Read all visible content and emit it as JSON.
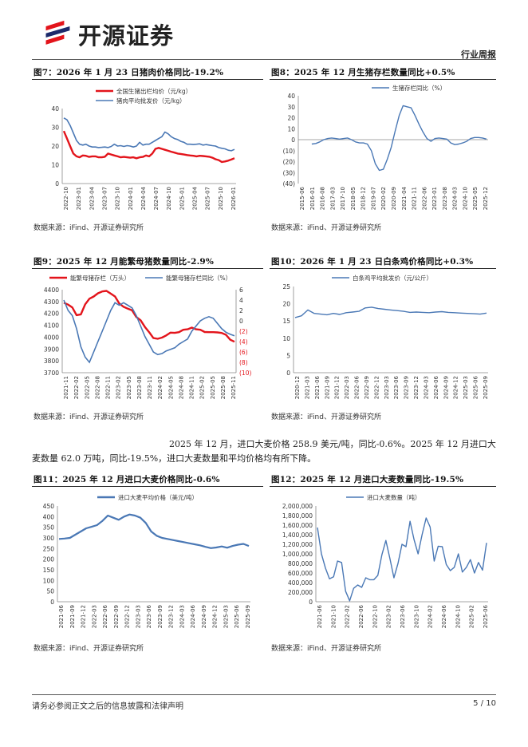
{
  "header": {
    "brand": "开源证券",
    "report_type": "行业周报"
  },
  "colors": {
    "red": "#e3141b",
    "blue": "#4a78b5",
    "accent": "#1a1a1a"
  },
  "figures": [
    {
      "title": "图7：2026 年 1 月 23 日猪肉价格同比-19.2%",
      "source": "数据来源：iFind、开源证券研究所",
      "chart_data": {
        "type": "line",
        "legend": [
          "全国生猪出栏均价（元/kg）",
          "猪肉平均批发价（元/kg）"
        ],
        "y_ticks": [
          "40",
          "30",
          "20",
          "10",
          "0"
        ],
        "ylim": [
          0,
          40
        ],
        "x_ticks": [
          "2022-10",
          "2023-01",
          "2023-04",
          "2023-07",
          "2023-10",
          "2024-01",
          "2024-04",
          "2024-07",
          "2024-10",
          "2025-01",
          "2025-04",
          "2025-07",
          "2025-10",
          "2026-01"
        ],
        "series": [
          {
            "name": "全国生猪出栏均价（元/kg）",
            "values": [
              28,
              24,
              20,
              16,
              14.5,
              14,
              15,
              14.8,
              14.2,
              14.5,
              14.5,
              14,
              14,
              14.3,
              16,
              15.5,
              15,
              14.5,
              14,
              14.2,
              14,
              13.8,
              14,
              13.5,
              14,
              14.2,
              15,
              14.5,
              16,
              18.5,
              19,
              18.5,
              18,
              17.5,
              17,
              16.5,
              16,
              15.8,
              15.5,
              15.2,
              15,
              14.8,
              14.5,
              14.8,
              14.7,
              14.5,
              14.3,
              13.8,
              13,
              12.5,
              11.5,
              11.8,
              12.2,
              12.8,
              13.5
            ]
          },
          {
            "name": "猪肉平均批发价（元/kg）",
            "values": [
              35,
              34,
              31,
              27,
              23,
              21,
              20.5,
              21,
              20,
              19.5,
              19.5,
              19.2,
              19.3,
              19.5,
              19.2,
              19.8,
              21,
              20,
              20.2,
              19.8,
              20.2,
              20,
              19.5,
              20,
              22,
              20.5,
              21,
              21,
              22,
              23,
              24,
              25,
              27.5,
              26.5,
              25,
              24,
              23.5,
              22.5,
              22,
              21,
              21,
              20.8,
              21,
              21.2,
              20.5,
              20.8,
              20.5,
              20.2,
              20,
              19.2,
              18.8,
              18.5,
              17.8,
              17.5,
              18.2
            ]
          }
        ]
      }
    },
    {
      "title": "图8：2025 年 12 月生猪存栏数量同比+0.5%",
      "source": "数据来源：iFind、开源证券研究所",
      "chart_data": {
        "type": "line",
        "legend": [
          "生猪存栏同比（%）"
        ],
        "y_ticks": [
          "40",
          "30",
          "20",
          "10",
          "0",
          "(10)",
          "(20)",
          "(30)",
          "(40)"
        ],
        "ylim": [
          -40,
          40
        ],
        "x_ticks": [
          "2015-06",
          "2016-01",
          "2016-08",
          "2017-03",
          "2017-10",
          "2018-05",
          "2018-12",
          "2019-07",
          "2020-02",
          "2020-09",
          "2021-04",
          "2021-11",
          "2022-06",
          "2023-01",
          "2023-08",
          "2024-03",
          "2024-10",
          "2025-05",
          "2025-12"
        ],
        "series": [
          {
            "name": "生猪存栏同比（%）",
            "values": [
              null,
              null,
              null,
              -4,
              -3.5,
              -2,
              0,
              1,
              1.5,
              1,
              0.5,
              1,
              1.5,
              0,
              -2,
              -3,
              -3,
              -4,
              -10,
              -22,
              -28,
              -27,
              -18,
              -7,
              8,
              22,
              31,
              30,
              29,
              22,
              14,
              7,
              1,
              -1.5,
              1,
              1.5,
              1,
              0.5,
              -3,
              -4.5,
              -4,
              -3,
              -1.5,
              1,
              2,
              2,
              1.5,
              0.5
            ]
          }
        ]
      }
    },
    {
      "title": "图9：2025 年 12 月能繁母猪数量同比-2.9%",
      "source": "数据来源：iFind、开源证券研究所",
      "chart_data": {
        "type": "line",
        "legend": [
          "能繁母猪存栏（万头）",
          "能繁母猪存栏同比（%）"
        ],
        "y_ticks_left": [
          "4400",
          "4300",
          "4200",
          "4100",
          "4000",
          "3900",
          "3800",
          "3700"
        ],
        "y_ticks_right": [
          "6",
          "4",
          "2",
          "0",
          "(2)",
          "(4)",
          "(6)",
          "(8)",
          "(10)"
        ],
        "ylim_left": [
          3700,
          4400
        ],
        "ylim_right": [
          -10,
          6
        ],
        "x_ticks": [
          "2021-11",
          "2022-02",
          "2022-05",
          "2022-08",
          "2022-11",
          "2023-02",
          "2023-05",
          "2023-08",
          "2023-11",
          "2024-02",
          "2024-05",
          "2024-08",
          "2024-11",
          "2025-02",
          "2025-05",
          "2025-08",
          "2025-11"
        ],
        "series": [
          {
            "name": "能繁母猪存栏（万头）",
            "axis": "left",
            "values": [
              4290,
              4274,
              4250,
              4185,
              4192,
              4277,
              4324,
              4343,
              4370,
              4385,
              4390,
              4367,
              4343,
              4284,
              4256,
              4240,
              4226,
              4170,
              4142,
              4086,
              4042,
              3992,
              3986,
              3996,
              4014,
              4038,
              4036,
              4042,
              4062,
              4066,
              4080,
              4066,
              4062,
              4043,
              4042,
              4042,
              4040,
              4035,
              4020,
              3978,
              3961
            ]
          }
        ]
      }
    },
    {
      "title": "图10：2026 年 1 月 23 日白条鸡价格同比+0.3%",
      "source": "数据来源：iFind、开源证券研究所",
      "chart_data": {
        "type": "line",
        "legend": [
          "白条鸡平均批发价（元/公斤）"
        ],
        "y_ticks": [
          "25",
          "20",
          "15",
          "10",
          "5",
          "0"
        ],
        "ylim": [
          0,
          25
        ],
        "x_ticks": [
          "2020-12",
          "2021-03",
          "2021-06",
          "2021-09",
          "2021-12",
          "2022-03",
          "2022-06",
          "2022-09",
          "2022-12",
          "2023-03",
          "2023-06",
          "2023-09",
          "2023-12",
          "2024-03",
          "2024-06",
          "2024-09",
          "2024-12",
          "2025-03",
          "2025-06",
          "2025-09"
        ],
        "series": [
          {
            "name": "白条鸡平均批发价（元/公斤）",
            "values": [
              16,
              16.5,
              18.2,
              17.2,
              17,
              16.8,
              17.2,
              16.9,
              17.4,
              17.6,
              17.8,
              18.8,
              19,
              18.6,
              18.4,
              18.2,
              18,
              17.8,
              17.5,
              17.6,
              17.5,
              17.4,
              17.6,
              17.7,
              17.5,
              17.4,
              17.3,
              17.2,
              17.1,
              17,
              17.3
            ]
          }
        ]
      }
    },
    {
      "title": "图11：2025 年 12 月进口大麦价格同比-0.6%",
      "source": "数据来源：iFind、开源证券研究所",
      "chart_data": {
        "type": "line",
        "legend": [
          "进口大麦平均价格（美元/吨）"
        ],
        "y_ticks": [
          "450",
          "400",
          "350",
          "300",
          "250",
          "200",
          "150",
          "100",
          "50",
          "0"
        ],
        "ylim": [
          0,
          450
        ],
        "x_ticks": [
          "2021-06",
          "2021-09",
          "2021-12",
          "2022-03",
          "2022-06",
          "2022-09",
          "2022-12",
          "2023-03",
          "2023-06",
          "2023-09",
          "2023-12",
          "2024-03",
          "2024-06",
          "2024-09",
          "2024-12",
          "2025-03",
          "2025-06",
          "2025-09"
        ],
        "series": [
          {
            "name": "进口大麦平均价格（美元/吨）",
            "values": [
              295,
              297,
              300,
              315,
              330,
              345,
              352,
              360,
              380,
              405,
              395,
              385,
              400,
              410,
              405,
              395,
              370,
              330,
              310,
              300,
              295,
              290,
              285,
              280,
              275,
              270,
              265,
              258,
              252,
              255,
              260,
              254,
              262,
              268,
              272,
              262
            ]
          }
        ]
      }
    },
    {
      "title": "图12：2025 年 12 月进口大麦数量同比-19.5%",
      "source": "数据来源：iFind、开源证券研究所",
      "chart_data": {
        "type": "line",
        "legend": [
          "进口大麦数量（吨）"
        ],
        "y_ticks": [
          "2,000,000",
          "1,800,000",
          "1,600,000",
          "1,400,000",
          "1,200,000",
          "1,000,000",
          "800,000",
          "600,000",
          "400,000",
          "200,000",
          "0"
        ],
        "ylim": [
          0,
          2000000
        ],
        "x_ticks": [
          "2021-06",
          "2021-10",
          "2022-02",
          "2022-06",
          "2022-10",
          "2023-02",
          "2023-06",
          "2023-10",
          "2024-02",
          "2024-06",
          "2024-10",
          "2025-02",
          "2025-06"
        ],
        "series": [
          {
            "name": "进口大麦数量（吨）",
            "values": [
              1550000,
              1000000,
              700000,
              480000,
              520000,
              850000,
              820000,
              220000,
              20000,
              280000,
              350000,
              300000,
              500000,
              460000,
              460000,
              550000,
              980000,
              1280000,
              900000,
              500000,
              800000,
              1200000,
              1150000,
              1680000,
              1300000,
              1000000,
              1400000,
              1750000,
              1560000,
              850000,
              1160000,
              1150000,
              780000,
              650000,
              720000,
              1000000,
              620000,
              720000,
              880000,
              600000,
              820000,
              660000,
              1230000
            ]
          }
        ]
      }
    }
  ],
  "paragraph": "2025 年 12 月，进口大麦价格 258.9 美元/吨，同比-0.6%。2025 年 12 月进口大麦数量 62.0 万吨，同比-19.5%，进口大麦数量和平均价格均有所下降。",
  "footer": {
    "disclaimer": "请务必参阅正文之后的信息披露和法律声明",
    "page": "5 / 10"
  }
}
